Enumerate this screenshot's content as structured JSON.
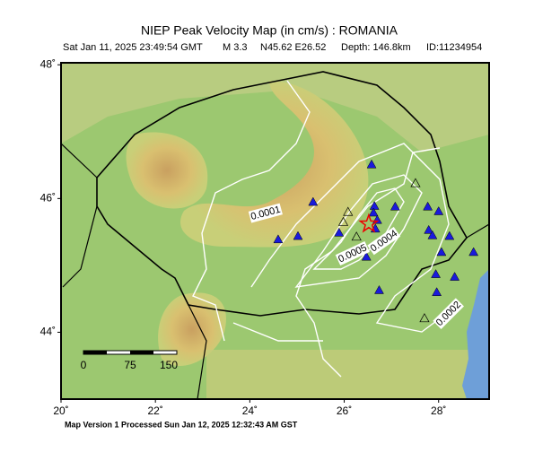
{
  "map": {
    "title": "NIEP Peak Velocity Map (in cm/s) : ROMANIA",
    "subtitle": [
      "Sat Jan 11, 2025 23:49:54 GMT",
      "M 3.3",
      "N45.62 E26.52",
      "Depth: 146.8km",
      "ID:11234954"
    ],
    "xlim": [
      20,
      29.07
    ],
    "ylim": [
      43,
      48.03
    ],
    "xticks": [
      {
        "value": 20,
        "label": "20˚"
      },
      {
        "value": 22,
        "label": "22˚"
      },
      {
        "value": 24,
        "label": "24˚"
      },
      {
        "value": 26,
        "label": "26˚"
      },
      {
        "value": 28,
        "label": "28˚"
      }
    ],
    "yticks": [
      {
        "value": 44,
        "label": "44˚"
      },
      {
        "value": 46,
        "label": "46˚"
      },
      {
        "value": 48,
        "label": "48˚"
      }
    ],
    "epicenter": [
      26.52,
      45.62
    ],
    "stations": [
      [
        26.58,
        46.51
      ],
      [
        25.34,
        45.95
      ],
      [
        26.64,
        45.89
      ],
      [
        27.08,
        45.88
      ],
      [
        27.77,
        45.88
      ],
      [
        28.0,
        45.81
      ],
      [
        26.62,
        45.79
      ],
      [
        26.7,
        45.68
      ],
      [
        26.66,
        45.55
      ],
      [
        25.89,
        45.49
      ],
      [
        25.02,
        45.44
      ],
      [
        24.6,
        45.39
      ],
      [
        27.79,
        45.53
      ],
      [
        27.87,
        45.45
      ],
      [
        28.23,
        45.44
      ],
      [
        26.47,
        45.13
      ],
      [
        28.06,
        45.2
      ],
      [
        28.74,
        45.2
      ],
      [
        27.94,
        44.87
      ],
      [
        28.34,
        44.83
      ],
      [
        26.74,
        44.63
      ],
      [
        27.96,
        44.6
      ]
    ],
    "stations_open": [
      [
        27.51,
        46.23
      ],
      [
        26.08,
        45.8
      ],
      [
        25.98,
        45.65
      ],
      [
        26.26,
        45.43
      ],
      [
        27.7,
        44.21
      ]
    ],
    "contour_labels": [
      "0.0001",
      "0.0005",
      "0.0004",
      "0.0002"
    ],
    "scale_labels": [
      "0",
      "75",
      "150"
    ],
    "footer": "Map Version 1 Processed Sun Jan 12, 2025 12:32:43 AM GST"
  }
}
